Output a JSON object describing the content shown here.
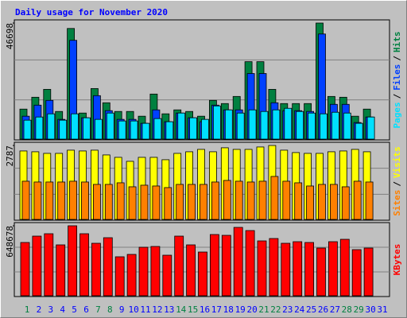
{
  "chart_data": {
    "type": "bar",
    "title": "Daily usage for November 2020",
    "categories": [
      "1",
      "2",
      "3",
      "4",
      "5",
      "6",
      "7",
      "8",
      "9",
      "10",
      "11",
      "12",
      "13",
      "14",
      "15",
      "16",
      "17",
      "18",
      "19",
      "20",
      "21",
      "22",
      "23",
      "24",
      "25",
      "26",
      "27",
      "28",
      "29",
      "30",
      "31"
    ],
    "highlight_categories": [
      0,
      6,
      7,
      13,
      14,
      20,
      21,
      27,
      28
    ],
    "highlight_color": "#008040",
    "category_color": "#0000ff",
    "legend_separator": "/",
    "panels": [
      {
        "ylim": [
          0,
          46698
        ],
        "yticks": [
          46698
        ],
        "series": [
          {
            "name": "Hits",
            "color": "#008040",
            "values": [
              12080,
              16850,
              20030,
              11130,
              44520,
              10490,
              20350,
              14630,
              11130,
              11130,
              9220,
              18130,
              10180,
              11770,
              11130,
              9220,
              15580,
              14310,
              17170,
              31160,
              31160,
              20030,
              14310,
              14310,
              14310,
              46698,
              17170,
              16850,
              9220,
              12080,
              null
            ]
          },
          {
            "name": "Files",
            "color": "#0040ff",
            "values": [
              9220,
              13670,
              15580,
              7950,
              39750,
              8590,
              17490,
              11450,
              7950,
              7950,
              6360,
              11770,
              7000,
              10490,
              8590,
              7000,
              13670,
              11770,
              11770,
              26390,
              26390,
              14630,
              11450,
              11450,
              11130,
              42290,
              13990,
              13990,
              6680,
              8900,
              null
            ]
          },
          {
            "name": "Pages",
            "color": "#00e0ff",
            "values": [
              7630,
              8900,
              10180,
              7630,
              10180,
              8590,
              7950,
              10490,
              7310,
              7310,
              6360,
              8270,
              7000,
              10490,
              8590,
              7950,
              13360,
              11770,
              10490,
              11770,
              11130,
              11770,
              12400,
              11130,
              10490,
              10180,
              10810,
              10490,
              6360,
              8900,
              null
            ]
          }
        ]
      },
      {
        "ylim": [
          0,
          2787
        ],
        "yticks": [
          2787
        ],
        "series": [
          {
            "name": "Visits",
            "color": "#ffff00",
            "values": [
              2580,
              2550,
              2490,
              2490,
              2610,
              2580,
              2610,
              2430,
              2340,
              2190,
              2340,
              2340,
              2250,
              2490,
              2550,
              2640,
              2550,
              2700,
              2640,
              2640,
              2730,
              2787,
              2610,
              2520,
              2490,
              2490,
              2550,
              2580,
              2640,
              2550,
              null
            ]
          },
          {
            "name": "Sites",
            "color": "#ff8000",
            "values": [
              1440,
              1410,
              1410,
              1410,
              1440,
              1410,
              1320,
              1320,
              1380,
              1230,
              1290,
              1260,
              1200,
              1320,
              1320,
              1320,
              1410,
              1470,
              1440,
              1410,
              1440,
              1620,
              1440,
              1380,
              1260,
              1320,
              1320,
              1230,
              1440,
              1410,
              null
            ]
          }
        ]
      },
      {
        "ylim": [
          0,
          648678
        ],
        "yticks": [
          648678
        ],
        "series": [
          {
            "name": "KBytes",
            "color": "#ff0000",
            "values": [
              493900,
              552800,
              575000,
              471700,
              648678,
              575000,
              486500,
              538100,
              361200,
              383300,
              449600,
              457000,
              375900,
              552800,
              471700,
              405400,
              567600,
              560200,
              633900,
              604400,
              508600,
              530700,
              486500,
              501200,
              493900,
              442300,
              501200,
              523300,
              427500,
              442300,
              null
            ]
          }
        ]
      }
    ]
  }
}
